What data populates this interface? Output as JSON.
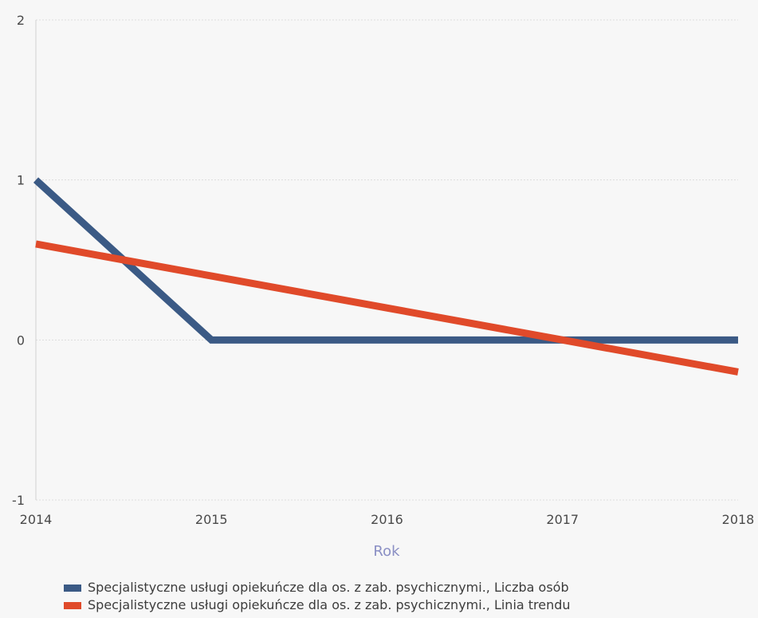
{
  "chart_data": {
    "type": "line",
    "x": [
      2014,
      2015,
      2016,
      2017,
      2018
    ],
    "xlabel": "Rok",
    "ylabel": "",
    "ylim": [
      -1,
      2
    ],
    "yticks": [
      -1,
      0,
      1,
      2
    ],
    "xticks": [
      "2014",
      "2015",
      "2016",
      "2017",
      "2018"
    ],
    "grid": "horizontal dotted",
    "legend_position": "bottom",
    "series": [
      {
        "name": "Specjalistyczne usługi opiekuńcze dla os. z zab. psychicznymi., Liczba osób",
        "values": [
          1,
          0,
          0,
          0,
          0
        ],
        "color": "#3b5a85"
      },
      {
        "name": "Specjalistyczne usługi opiekuńcze dla os. z zab. psychicznymi., Linia trendu",
        "values": [
          0.6,
          0.4,
          0.2,
          0.0,
          -0.2
        ],
        "color": "#e04a2a"
      }
    ]
  }
}
